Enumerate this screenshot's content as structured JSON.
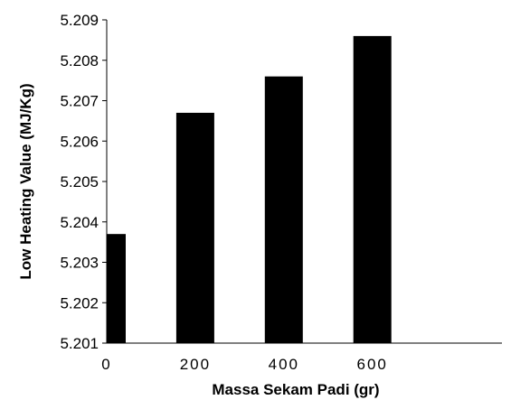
{
  "chart_data": {
    "type": "bar",
    "x": [
      0,
      200,
      400,
      600
    ],
    "values": [
      5.2037,
      5.2067,
      5.2076,
      5.2086
    ],
    "xlabel": "Massa Sekam Padi (gr)",
    "ylabel": "Low Heating Value (MJ/Kg)",
    "ylim": [
      5.201,
      5.209
    ],
    "xlim": [
      0,
      760
    ],
    "yticks": [
      "5.201",
      "5.202",
      "5.203",
      "5.204",
      "5.205",
      "5.206",
      "5.207",
      "5.208",
      "5.209"
    ],
    "xticks": [
      "0",
      "200",
      "400",
      "600"
    ],
    "bar_color": "#000000",
    "grid": false,
    "legend": "none"
  }
}
